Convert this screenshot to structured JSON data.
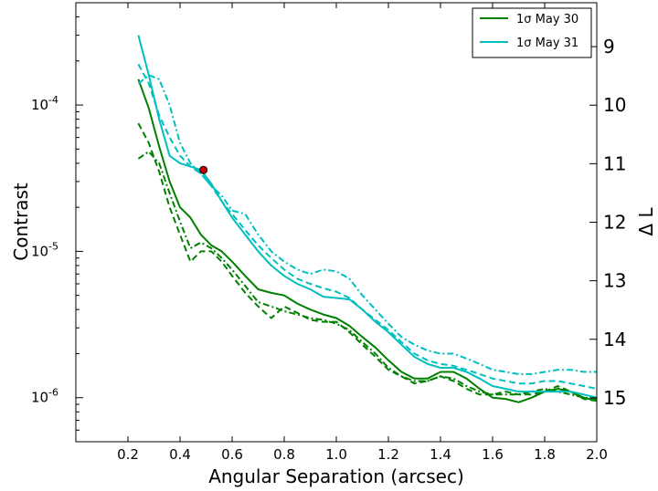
{
  "chart_data": {
    "type": "line",
    "xlabel": "Angular Separation (arcsec)",
    "ylabel": "Contrast",
    "y2label": "Δ L",
    "xlim": [
      0.0,
      2.0
    ],
    "ylim": [
      5e-07,
      0.0005
    ],
    "yscale": "log",
    "y2lim": [
      15.75,
      8.25
    ],
    "grid": false,
    "legend_position": "top-right",
    "x_ticks": [
      "0.2",
      "0.4",
      "0.6",
      "0.8",
      "1.0",
      "1.2",
      "1.4",
      "1.6",
      "1.8",
      "2.0"
    ],
    "y_ticks": [
      "10-6",
      "10-5",
      "10-4"
    ],
    "y2_ticks": [
      "9",
      "10",
      "11",
      "12",
      "13",
      "14",
      "15"
    ],
    "legend": [
      {
        "label": "1σ May 30",
        "color": "#008000"
      },
      {
        "label": "1σ May 31",
        "color": "#00bfbf"
      }
    ],
    "marker": {
      "x": 0.49,
      "y": 3.6e-05,
      "color": "#cc0000"
    },
    "series": [
      {
        "name": "1σ May 30",
        "color": "#008000",
        "style": "solid",
        "x": [
          0.24,
          0.28,
          0.32,
          0.36,
          0.4,
          0.44,
          0.48,
          0.52,
          0.56,
          0.6,
          0.65,
          0.7,
          0.75,
          0.8,
          0.85,
          0.9,
          0.95,
          1.0,
          1.05,
          1.1,
          1.15,
          1.2,
          1.25,
          1.3,
          1.35,
          1.4,
          1.45,
          1.5,
          1.55,
          1.6,
          1.65,
          1.7,
          1.75,
          1.8,
          1.85,
          1.9,
          1.95,
          2.0
        ],
        "y": [
          0.00015,
          9.5e-05,
          5.2e-05,
          3e-05,
          2e-05,
          1.7e-05,
          1.3e-05,
          1.1e-05,
          1e-05,
          8.5e-06,
          6.8e-06,
          5.5e-06,
          5.2e-06,
          5e-06,
          4.4e-06,
          4e-06,
          3.7e-06,
          3.5e-06,
          3.1e-06,
          2.6e-06,
          2.2e-06,
          1.8e-06,
          1.5e-06,
          1.35e-06,
          1.35e-06,
          1.5e-06,
          1.5e-06,
          1.35e-06,
          1.15e-06,
          1e-06,
          9.8e-07,
          9.3e-07,
          1e-06,
          1.1e-06,
          1.15e-06,
          1.1e-06,
          1e-06,
          9.5e-07
        ]
      },
      {
        "name": "",
        "color": "#008000",
        "style": "dashed",
        "x": [
          0.24,
          0.28,
          0.32,
          0.36,
          0.4,
          0.44,
          0.48,
          0.52,
          0.56,
          0.6,
          0.65,
          0.7,
          0.75,
          0.8,
          0.85,
          0.9,
          0.95,
          1.0,
          1.05,
          1.1,
          1.15,
          1.2,
          1.25,
          1.3,
          1.35,
          1.4,
          1.45,
          1.5,
          1.55,
          1.6,
          1.65,
          1.7,
          1.75,
          1.8,
          1.85,
          1.9,
          1.95,
          2.0
        ],
        "y": [
          7.5e-05,
          5.5e-05,
          3.5e-05,
          2e-05,
          1.3e-05,
          8.5e-06,
          1e-05,
          1e-05,
          8.5e-06,
          6.8e-06,
          5.2e-06,
          4.2e-06,
          3.5e-06,
          4.2e-06,
          3.8e-06,
          3.4e-06,
          3.3e-06,
          3.3e-06,
          2.8e-06,
          2.3e-06,
          1.9e-06,
          1.55e-06,
          1.4e-06,
          1.25e-06,
          1.3e-06,
          1.4e-06,
          1.3e-06,
          1.15e-06,
          1.05e-06,
          1.05e-06,
          1.1e-06,
          1.05e-06,
          1.05e-06,
          1.1e-06,
          1.2e-06,
          1.1e-06,
          9.8e-07,
          9.5e-07
        ]
      },
      {
        "name": "",
        "color": "#008000",
        "style": "dashdot",
        "x": [
          0.24,
          0.28,
          0.32,
          0.36,
          0.4,
          0.44,
          0.48,
          0.52,
          0.56,
          0.6,
          0.65,
          0.7,
          0.75,
          0.8,
          0.85,
          0.9,
          0.95,
          1.0,
          1.05,
          1.1,
          1.15,
          1.2,
          1.25,
          1.3,
          1.35,
          1.4,
          1.45,
          1.5,
          1.55,
          1.6,
          1.65,
          1.7,
          1.75,
          1.8,
          1.85,
          1.9,
          1.95,
          2.0
        ],
        "y": [
          4.3e-05,
          4.8e-05,
          4e-05,
          2.5e-05,
          1.6e-05,
          1.05e-05,
          1.15e-05,
          1.05e-05,
          9e-06,
          7.5e-06,
          5.8e-06,
          4.5e-06,
          4.2e-06,
          3.9e-06,
          3.7e-06,
          3.5e-06,
          3.4e-06,
          3.2e-06,
          2.9e-06,
          2.4e-06,
          2e-06,
          1.6e-06,
          1.4e-06,
          1.3e-06,
          1.3e-06,
          1.4e-06,
          1.35e-06,
          1.2e-06,
          1.1e-06,
          1.05e-06,
          1.05e-06,
          1.05e-06,
          1.1e-06,
          1.15e-06,
          1.1e-06,
          1.05e-06,
          1e-06,
          9.8e-07
        ]
      },
      {
        "name": "1σ May 31",
        "color": "#00bfbf",
        "style": "solid",
        "x": [
          0.24,
          0.28,
          0.32,
          0.36,
          0.4,
          0.44,
          0.48,
          0.52,
          0.56,
          0.6,
          0.65,
          0.7,
          0.75,
          0.8,
          0.85,
          0.9,
          0.95,
          1.0,
          1.05,
          1.1,
          1.15,
          1.2,
          1.25,
          1.3,
          1.35,
          1.4,
          1.45,
          1.5,
          1.55,
          1.6,
          1.65,
          1.7,
          1.75,
          1.8,
          1.85,
          1.9,
          1.95,
          2.0
        ],
        "y": [
          0.0003,
          0.00016,
          8e-05,
          4.5e-05,
          4e-05,
          3.8e-05,
          3.6e-05,
          2.9e-05,
          2.2e-05,
          1.7e-05,
          1.3e-05,
          1e-05,
          8e-06,
          6.8e-06,
          6e-06,
          5.5e-06,
          4.9e-06,
          4.8e-06,
          4.7e-06,
          4e-06,
          3.3e-06,
          2.8e-06,
          2.3e-06,
          1.9e-06,
          1.7e-06,
          1.6e-06,
          1.6e-06,
          1.5e-06,
          1.35e-06,
          1.2e-06,
          1.15e-06,
          1.1e-06,
          1.1e-06,
          1.1e-06,
          1.1e-06,
          1.1e-06,
          1.05e-06,
          1e-06
        ]
      },
      {
        "name": "",
        "color": "#00bfbf",
        "style": "dashed",
        "x": [
          0.24,
          0.28,
          0.32,
          0.36,
          0.4,
          0.44,
          0.48,
          0.52,
          0.56,
          0.6,
          0.65,
          0.7,
          0.75,
          0.8,
          0.85,
          0.9,
          0.95,
          1.0,
          1.05,
          1.1,
          1.15,
          1.2,
          1.25,
          1.3,
          1.35,
          1.4,
          1.45,
          1.5,
          1.55,
          1.6,
          1.65,
          1.7,
          1.75,
          1.8,
          1.85,
          1.9,
          1.95,
          2.0
        ],
        "y": [
          0.00019,
          0.00014,
          8.5e-05,
          6e-05,
          4.5e-05,
          3.8e-05,
          3.4e-05,
          2.8e-05,
          2.2e-05,
          1.8e-05,
          1.4e-05,
          1.1e-05,
          9e-06,
          7.5e-06,
          6.5e-06,
          6e-06,
          5.6e-06,
          5.3e-06,
          4.8e-06,
          4e-06,
          3.4e-06,
          2.9e-06,
          2.4e-06,
          2e-06,
          1.8e-06,
          1.7e-06,
          1.65e-06,
          1.55e-06,
          1.45e-06,
          1.35e-06,
          1.3e-06,
          1.25e-06,
          1.25e-06,
          1.3e-06,
          1.3e-06,
          1.25e-06,
          1.2e-06,
          1.15e-06
        ]
      },
      {
        "name": "",
        "color": "#00bfbf",
        "style": "dashdot",
        "x": [
          0.24,
          0.28,
          0.32,
          0.36,
          0.4,
          0.44,
          0.48,
          0.52,
          0.56,
          0.6,
          0.65,
          0.7,
          0.75,
          0.8,
          0.85,
          0.9,
          0.95,
          1.0,
          1.05,
          1.1,
          1.15,
          1.2,
          1.25,
          1.3,
          1.35,
          1.4,
          1.45,
          1.5,
          1.55,
          1.6,
          1.65,
          1.7,
          1.75,
          1.8,
          1.85,
          1.9,
          1.95,
          2.0
        ],
        "y": [
          0.00014,
          0.00016,
          0.00015,
          0.0001,
          5.5e-05,
          4e-05,
          3.4e-05,
          2.8e-05,
          2.4e-05,
          1.9e-05,
          1.8e-05,
          1.3e-05,
          1e-05,
          8.5e-06,
          7.5e-06,
          7e-06,
          7.5e-06,
          7.3e-06,
          6.5e-06,
          5e-06,
          4e-06,
          3.2e-06,
          2.6e-06,
          2.3e-06,
          2.1e-06,
          2e-06,
          2e-06,
          1.85e-06,
          1.7e-06,
          1.55e-06,
          1.5e-06,
          1.45e-06,
          1.45e-06,
          1.5e-06,
          1.55e-06,
          1.55e-06,
          1.5e-06,
          1.5e-06
        ]
      }
    ]
  }
}
